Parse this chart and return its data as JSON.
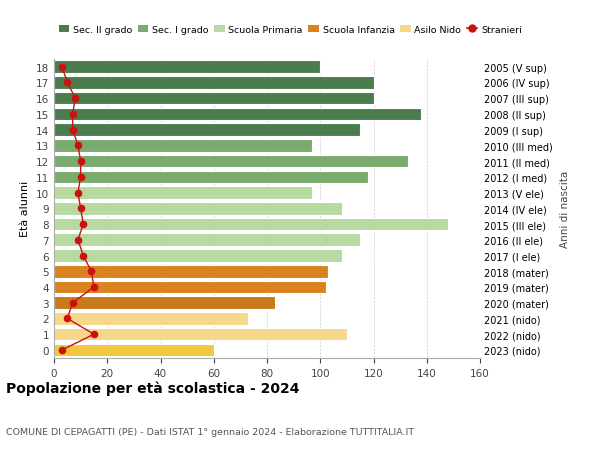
{
  "ages": [
    18,
    17,
    16,
    15,
    14,
    13,
    12,
    11,
    10,
    9,
    8,
    7,
    6,
    5,
    4,
    3,
    2,
    1,
    0
  ],
  "values": [
    100,
    120,
    120,
    138,
    115,
    97,
    133,
    118,
    97,
    108,
    148,
    115,
    108,
    103,
    102,
    83,
    73,
    110,
    60
  ],
  "stranieri": [
    3,
    5,
    8,
    7,
    7,
    9,
    10,
    10,
    9,
    10,
    11,
    9,
    11,
    14,
    15,
    7,
    5,
    15,
    3
  ],
  "right_labels": [
    "2005 (V sup)",
    "2006 (IV sup)",
    "2007 (III sup)",
    "2008 (II sup)",
    "2009 (I sup)",
    "2010 (III med)",
    "2011 (II med)",
    "2012 (I med)",
    "2013 (V ele)",
    "2014 (IV ele)",
    "2015 (III ele)",
    "2016 (II ele)",
    "2017 (I ele)",
    "2018 (mater)",
    "2019 (mater)",
    "2020 (mater)",
    "2021 (nido)",
    "2022 (nido)",
    "2023 (nido)"
  ],
  "bar_colors": [
    "#4a7c4e",
    "#4a7c4e",
    "#4a7c4e",
    "#4a7c4e",
    "#4a7c4e",
    "#7aab6e",
    "#7aab6e",
    "#7aab6e",
    "#b8d9a0",
    "#b8d9a0",
    "#b8d9a0",
    "#b8d9a0",
    "#b8d9a0",
    "#d9821e",
    "#d9821e",
    "#c97a1a",
    "#f5d88a",
    "#f5d88a",
    "#f0c840"
  ],
  "legend_labels": [
    "Sec. II grado",
    "Sec. I grado",
    "Scuola Primaria",
    "Scuola Infanzia",
    "Asilo Nido",
    "Stranieri"
  ],
  "legend_colors": [
    "#4a7c4e",
    "#7aab6e",
    "#b8d9a0",
    "#d9821e",
    "#f5d88a",
    "#cc1111"
  ],
  "stranieri_color": "#cc1111",
  "title": "Popolazione per età scolastica - 2024",
  "subtitle": "COMUNE DI CEPAGATTI (PE) - Dati ISTAT 1° gennaio 2024 - Elaborazione TUTTITALIA.IT",
  "ylabel": "Età alunni",
  "right_ylabel": "Anni di nascita",
  "xlim": [
    0,
    160
  ],
  "xticks": [
    0,
    20,
    40,
    60,
    80,
    100,
    120,
    140,
    160
  ],
  "background_color": "#ffffff",
  "bar_height": 0.8,
  "fig_width": 6.0,
  "fig_height": 4.6,
  "dpi": 100
}
